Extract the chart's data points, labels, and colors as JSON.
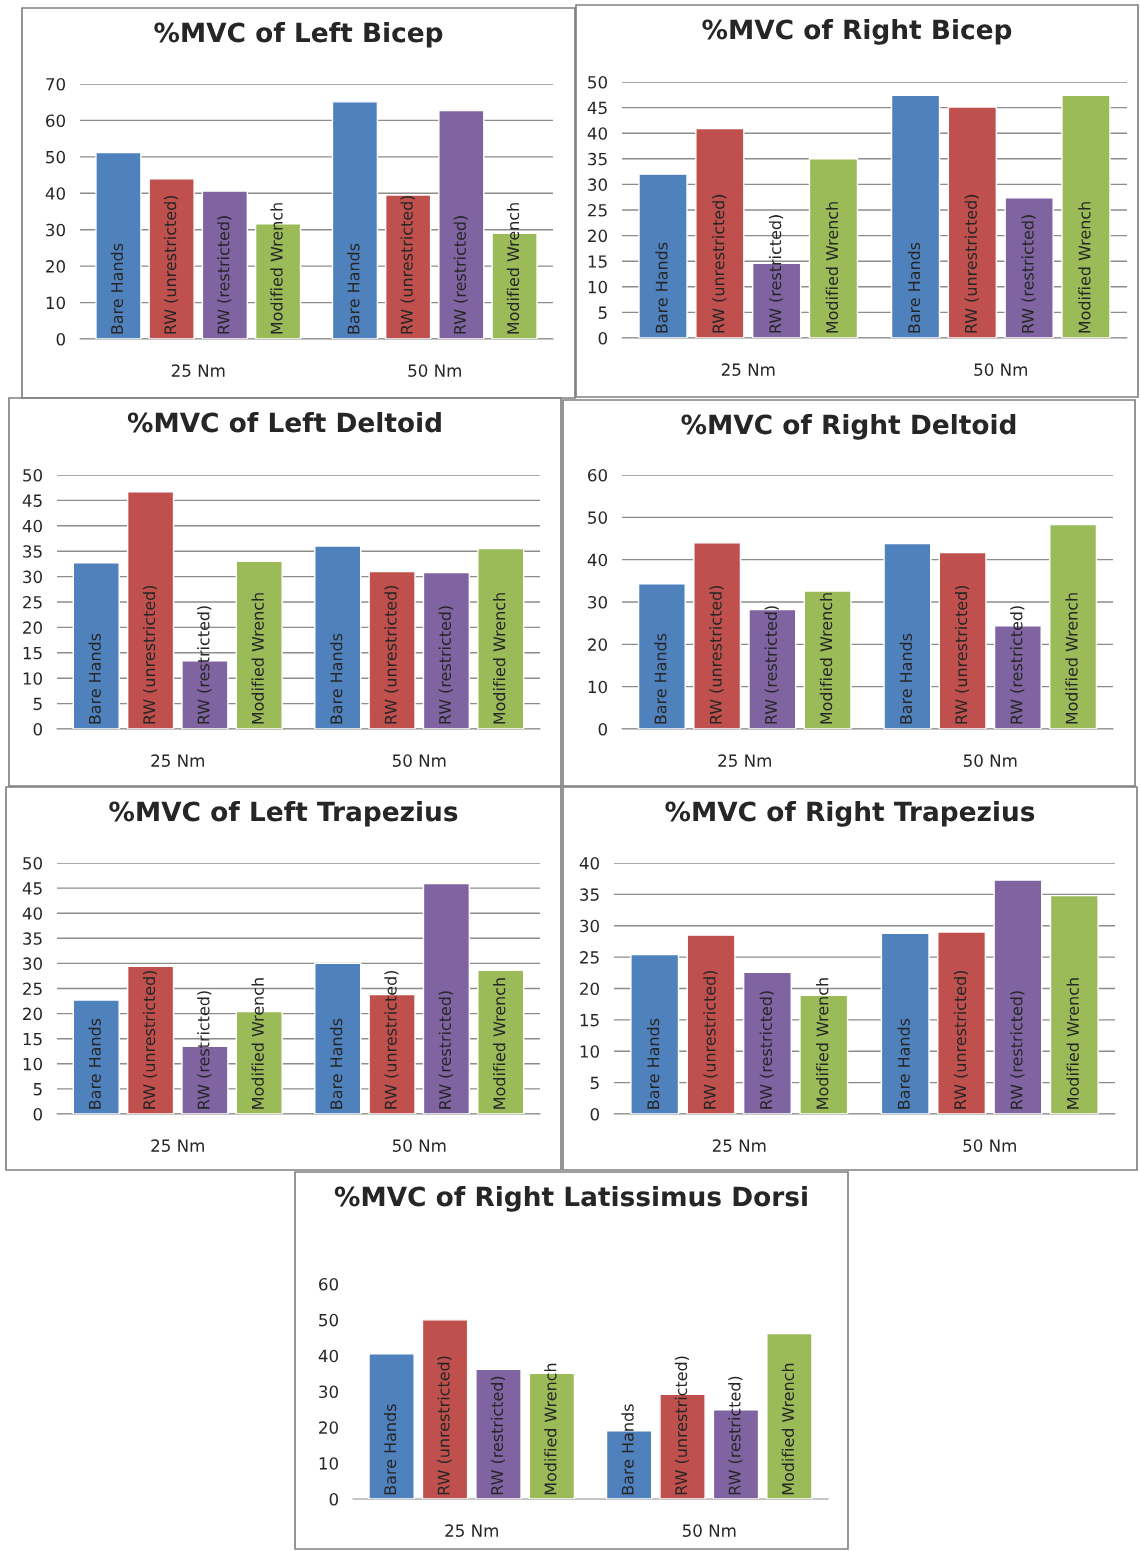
{
  "chart_data": [
    {
      "type": "bar",
      "title": "%MVC of Left Bicep",
      "categories": [
        "25 Nm",
        "50 Nm"
      ],
      "ylim": [
        0,
        70
      ],
      "yticks": [
        0,
        10,
        20,
        30,
        40,
        50,
        60,
        70
      ],
      "grid": "y",
      "series": [
        {
          "name": "Bare Hands",
          "color": "#4f81bd",
          "values": [
            51.2,
            65.1
          ]
        },
        {
          "name": "RW (unrestricted)",
          "color": "#c0504d",
          "values": [
            44,
            39.5
          ]
        },
        {
          "name": "RW (restricted)",
          "color": "#8064a2",
          "values": [
            40.6,
            62.7
          ]
        },
        {
          "name": "Modified Wrench",
          "color": "#9bbb59",
          "values": [
            31.6,
            29
          ]
        }
      ]
    },
    {
      "type": "bar",
      "title": "%MVC of Right Bicep",
      "categories": [
        "25 Nm",
        "50 Nm"
      ],
      "ylim": [
        0,
        50
      ],
      "yticks": [
        0,
        5,
        10,
        15,
        20,
        25,
        30,
        35,
        40,
        45,
        50
      ],
      "grid": "y",
      "series": [
        {
          "name": "Bare Hands",
          "color": "#4f81bd",
          "values": [
            32,
            47.4
          ]
        },
        {
          "name": "RW (unrestricted)",
          "color": "#c0504d",
          "values": [
            40.9,
            45.1
          ]
        },
        {
          "name": "RW (restricted)",
          "color": "#8064a2",
          "values": [
            14.6,
            27.4
          ]
        },
        {
          "name": "Modified Wrench",
          "color": "#9bbb59",
          "values": [
            35,
            47.4
          ]
        }
      ]
    },
    {
      "type": "bar",
      "title": "%MVC of Left Deltoid",
      "categories": [
        "25 Nm",
        "50 Nm"
      ],
      "ylim": [
        0,
        50
      ],
      "yticks": [
        0,
        5,
        10,
        15,
        20,
        25,
        30,
        35,
        40,
        45,
        50
      ],
      "grid": "y",
      "series": [
        {
          "name": "Bare Hands",
          "color": "#4f81bd",
          "values": [
            32.7,
            36
          ]
        },
        {
          "name": "RW (unrestricted)",
          "color": "#c0504d",
          "values": [
            46.7,
            31
          ]
        },
        {
          "name": "RW (restricted)",
          "color": "#8064a2",
          "values": [
            13.4,
            30.8
          ]
        },
        {
          "name": "Modified Wrench",
          "color": "#9bbb59",
          "values": [
            33,
            35.5
          ]
        }
      ]
    },
    {
      "type": "bar",
      "title": "%MVC of Right Deltoid",
      "categories": [
        "25 Nm",
        "50 Nm"
      ],
      "ylim": [
        0,
        60
      ],
      "yticks": [
        0,
        10,
        20,
        30,
        40,
        50,
        60
      ],
      "grid": "y",
      "series": [
        {
          "name": "Bare Hands",
          "color": "#4f81bd",
          "values": [
            34.3,
            43.8
          ]
        },
        {
          "name": "RW (unrestricted)",
          "color": "#c0504d",
          "values": [
            44,
            41.7
          ]
        },
        {
          "name": "RW (restricted)",
          "color": "#8064a2",
          "values": [
            28.2,
            24.4
          ]
        },
        {
          "name": "Modified Wrench",
          "color": "#9bbb59",
          "values": [
            32.6,
            48.3
          ]
        }
      ]
    },
    {
      "type": "bar",
      "title": "%MVC of Left Trapezius",
      "categories": [
        "25 Nm",
        "50 Nm"
      ],
      "ylim": [
        0,
        50
      ],
      "yticks": [
        0,
        5,
        10,
        15,
        20,
        25,
        30,
        35,
        40,
        45,
        50
      ],
      "grid": "y",
      "series": [
        {
          "name": "Bare Hands",
          "color": "#4f81bd",
          "values": [
            22.7,
            30
          ]
        },
        {
          "name": "RW (unrestricted)",
          "color": "#c0504d",
          "values": [
            29.4,
            23.8
          ]
        },
        {
          "name": "RW (restricted)",
          "color": "#8064a2",
          "values": [
            13.5,
            45.9
          ]
        },
        {
          "name": "Modified Wrench",
          "color": "#9bbb59",
          "values": [
            20.4,
            28.6
          ]
        }
      ]
    },
    {
      "type": "bar",
      "title": "%MVC of Right Trapezius",
      "categories": [
        "25 Nm",
        "50 Nm"
      ],
      "ylim": [
        0,
        40
      ],
      "yticks": [
        0,
        5,
        10,
        15,
        20,
        25,
        30,
        35,
        40
      ],
      "grid": "y",
      "series": [
        {
          "name": "Bare Hands",
          "color": "#4f81bd",
          "values": [
            25.4,
            28.8
          ]
        },
        {
          "name": "RW (unrestricted)",
          "color": "#c0504d",
          "values": [
            28.5,
            29
          ]
        },
        {
          "name": "RW (restricted)",
          "color": "#8064a2",
          "values": [
            22.6,
            37.3
          ]
        },
        {
          "name": "Modified Wrench",
          "color": "#9bbb59",
          "values": [
            18.9,
            34.8
          ]
        }
      ]
    },
    {
      "type": "bar",
      "title": "%MVC of Right Latissimus Dorsi",
      "categories": [
        "25 Nm",
        "50 Nm"
      ],
      "ylim": [
        0,
        60
      ],
      "yticks": [
        0,
        10,
        20,
        30,
        40,
        50,
        60
      ],
      "grid": false,
      "series": [
        {
          "name": "Bare Hands",
          "color": "#4f81bd",
          "values": [
            40.5,
            19
          ]
        },
        {
          "name": "RW (unrestricted)",
          "color": "#c0504d",
          "values": [
            50,
            29.2
          ]
        },
        {
          "name": "RW (restricted)",
          "color": "#8064a2",
          "values": [
            36.2,
            24.9
          ]
        },
        {
          "name": "Modified Wrench",
          "color": "#9bbb59",
          "values": [
            35.1,
            46.2
          ]
        }
      ]
    }
  ]
}
